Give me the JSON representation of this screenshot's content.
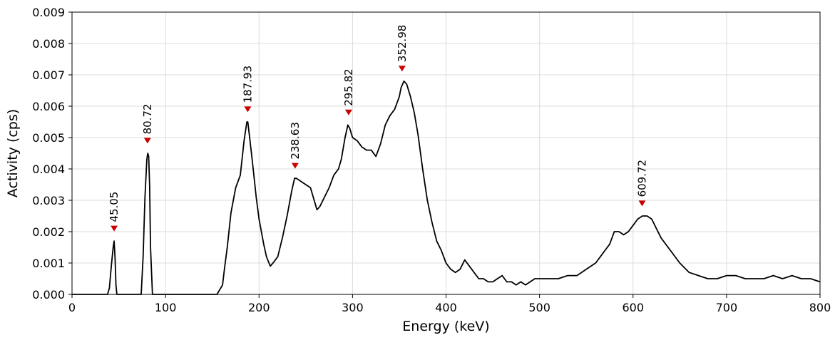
{
  "chart_data": {
    "type": "line",
    "xlabel": "Energy (keV)",
    "ylabel": "Activity (cps)",
    "xlim": [
      0,
      800
    ],
    "ylim": [
      0,
      0.009
    ],
    "xticks": [
      0,
      100,
      200,
      300,
      400,
      500,
      600,
      700,
      800
    ],
    "xtick_labels": [
      "0",
      "100",
      "200",
      "300",
      "400",
      "500",
      "600",
      "700",
      "800"
    ],
    "yticks": [
      0,
      0.001,
      0.002,
      0.003,
      0.004,
      0.005,
      0.006,
      0.007,
      0.008,
      0.009
    ],
    "ytick_labels": [
      "0.000",
      "0.001",
      "0.002",
      "0.003",
      "0.004",
      "0.005",
      "0.006",
      "0.007",
      "0.008",
      "0.009"
    ],
    "grid": true,
    "line_color": "#000000",
    "marker_color": "#cc0000",
    "series": [
      {
        "values_x": [
          0,
          27,
          38,
          40,
          42,
          44,
          45,
          46,
          47,
          48,
          52,
          74,
          76,
          78,
          80,
          81,
          82,
          83,
          84,
          86,
          155,
          161,
          163,
          166,
          170,
          175,
          180,
          184,
          187,
          188,
          190,
          193,
          197,
          200,
          205,
          208,
          212,
          215,
          220,
          225,
          230,
          235,
          238,
          240,
          245,
          250,
          255,
          258,
          262,
          265,
          270,
          275,
          280,
          285,
          288,
          292,
          295,
          297,
          300,
          305,
          310,
          315,
          320,
          325,
          330,
          335,
          340,
          345,
          350,
          352,
          355,
          358,
          362,
          366,
          370,
          375,
          380,
          385,
          390,
          395,
          400,
          405,
          410,
          415,
          420,
          425,
          430,
          435,
          440,
          445,
          450,
          455,
          460,
          465,
          470,
          475,
          480,
          485,
          490,
          495,
          500,
          510,
          520,
          530,
          540,
          550,
          555,
          560,
          565,
          570,
          575,
          580,
          585,
          590,
          595,
          600,
          605,
          610,
          615,
          620,
          625,
          630,
          640,
          650,
          660,
          670,
          680,
          690,
          700,
          710,
          720,
          730,
          740,
          750,
          760,
          770,
          780,
          790,
          800
        ],
        "values_y": [
          0.0,
          0.0,
          0.0,
          0.0002,
          0.0009,
          0.0015,
          0.0017,
          0.0012,
          0.0003,
          0.0,
          0.0,
          0.0,
          0.0012,
          0.0031,
          0.0043,
          0.0045,
          0.0044,
          0.0035,
          0.0015,
          0.0,
          0.0,
          0.0003,
          0.0008,
          0.0015,
          0.0026,
          0.0034,
          0.0038,
          0.0049,
          0.0055,
          0.0055,
          0.005,
          0.0042,
          0.0031,
          0.0024,
          0.0016,
          0.0012,
          0.0009,
          0.001,
          0.0012,
          0.0018,
          0.0025,
          0.0033,
          0.0037,
          0.0037,
          0.0036,
          0.0035,
          0.0034,
          0.0031,
          0.0027,
          0.0028,
          0.0031,
          0.0034,
          0.0038,
          0.004,
          0.0043,
          0.005,
          0.0054,
          0.0053,
          0.005,
          0.0049,
          0.0047,
          0.0046,
          0.0046,
          0.0044,
          0.0048,
          0.0054,
          0.0057,
          0.0059,
          0.0063,
          0.0066,
          0.0068,
          0.0067,
          0.0063,
          0.0058,
          0.0051,
          0.004,
          0.003,
          0.0023,
          0.0017,
          0.0014,
          0.001,
          0.0008,
          0.0007,
          0.0008,
          0.0011,
          0.0009,
          0.0007,
          0.0005,
          0.0005,
          0.0004,
          0.0004,
          0.0005,
          0.0006,
          0.0004,
          0.0004,
          0.0003,
          0.0004,
          0.0003,
          0.0004,
          0.0005,
          0.0005,
          0.0005,
          0.0005,
          0.0006,
          0.0006,
          0.0008,
          0.0009,
          0.001,
          0.0012,
          0.0014,
          0.0016,
          0.002,
          0.002,
          0.0019,
          0.002,
          0.0022,
          0.0024,
          0.0025,
          0.0025,
          0.0024,
          0.0021,
          0.0018,
          0.0014,
          0.001,
          0.0007,
          0.0006,
          0.0005,
          0.0005,
          0.0006,
          0.0006,
          0.0005,
          0.0005,
          0.0005,
          0.0006,
          0.0005,
          0.0006,
          0.0005,
          0.0005,
          0.0004
        ]
      }
    ],
    "peaks": [
      {
        "label": "45.05",
        "x": 45.05,
        "y": 0.0021
      },
      {
        "label": "80.72",
        "x": 80.72,
        "y": 0.0049
      },
      {
        "label": "187.93",
        "x": 187.93,
        "y": 0.0059
      },
      {
        "label": "238.63",
        "x": 238.63,
        "y": 0.0041
      },
      {
        "label": "295.82",
        "x": 295.82,
        "y": 0.0058
      },
      {
        "label": "352.98",
        "x": 352.98,
        "y": 0.0072
      },
      {
        "label": "609.72",
        "x": 609.72,
        "y": 0.0029
      }
    ]
  }
}
